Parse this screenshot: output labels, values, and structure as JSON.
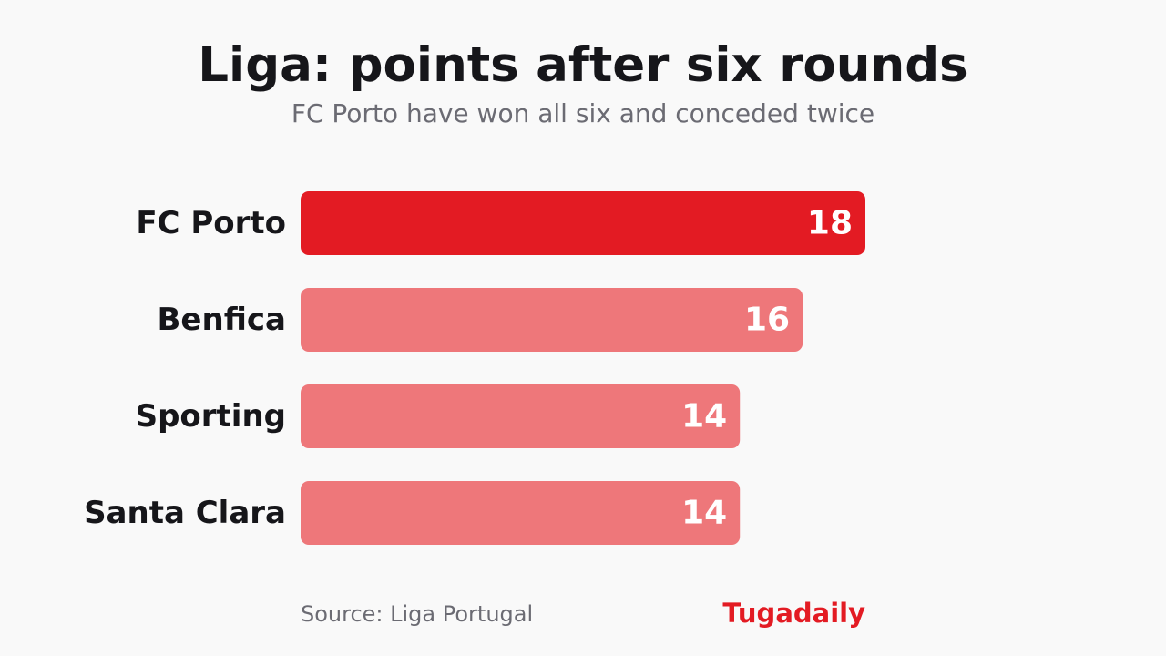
{
  "title": "Liga: points after six rounds",
  "subtitle": "FC Porto have won all six and conceded twice",
  "source": "Source: Liga Portugal",
  "brand": "Tugadaily",
  "colors": {
    "highlight": "#e31b23",
    "other": "#ee777a",
    "label": "#16161a",
    "value_text": "#ffffff",
    "muted": "#6b6b73",
    "background": "#f9f9f9"
  },
  "chart_data": {
    "type": "bar",
    "orientation": "horizontal",
    "categories": [
      "FC Porto",
      "Benfica",
      "Sporting",
      "Santa Clara"
    ],
    "values": [
      18,
      16,
      14,
      14
    ],
    "highlight": "FC Porto",
    "xlim": [
      0,
      18
    ],
    "grid": false,
    "xlabel": "",
    "ylabel": ""
  }
}
